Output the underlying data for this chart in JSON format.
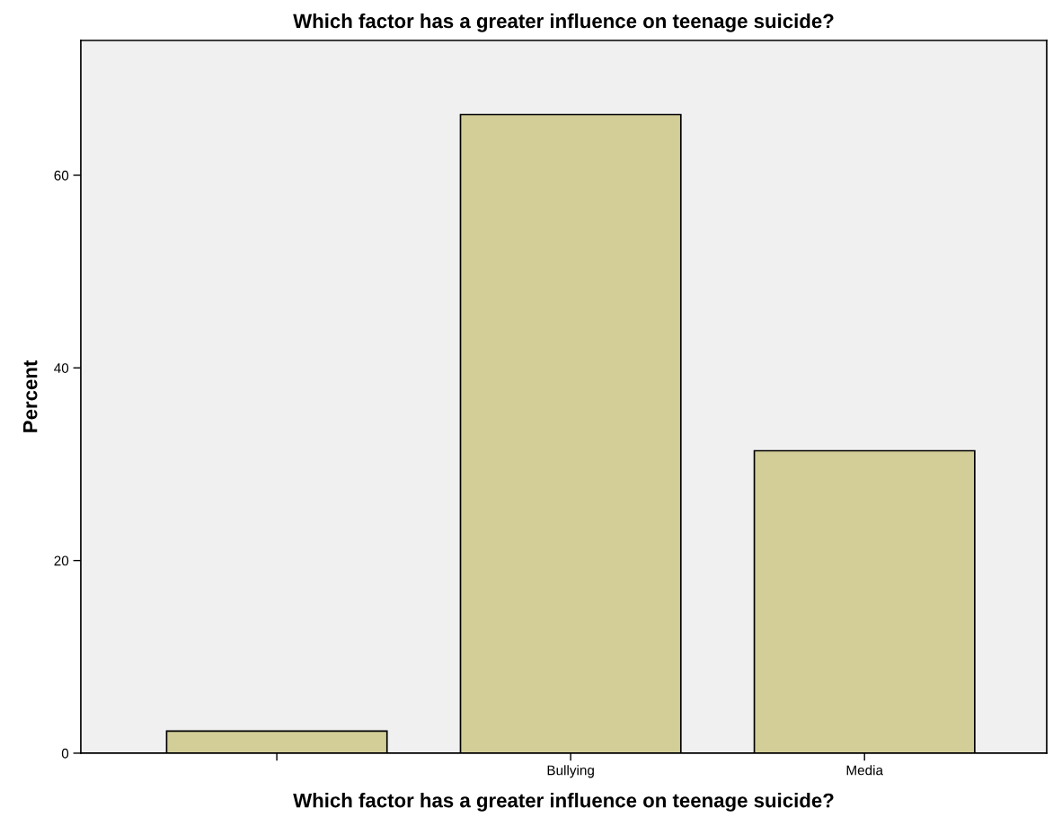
{
  "chart_data": {
    "type": "bar",
    "title": "Which factor has a greater influence on teenage suicide?",
    "xlabel": "Which factor has a greater influence on teenage suicide?",
    "ylabel": "Percent",
    "categories": [
      null,
      "Bullying",
      "Media"
    ],
    "values": [
      2.3,
      66.3,
      31.4
    ],
    "color": "#d3ce97",
    "ylim": [
      0,
      74
    ],
    "yticks": [
      0,
      20,
      40,
      60
    ],
    "grid": false
  }
}
